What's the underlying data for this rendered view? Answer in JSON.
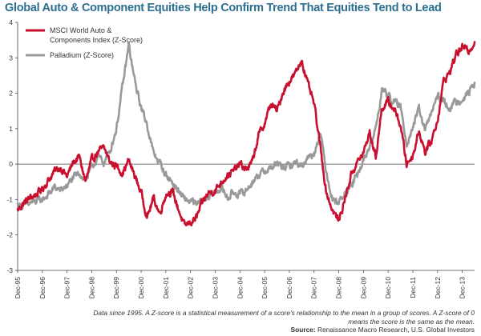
{
  "chart_data": {
    "type": "line",
    "title": "Global Auto & Component Equities Help Confirm Trend That Equities Tend to Lead",
    "xlabel": "",
    "ylabel": "",
    "ylim": [
      -3,
      4
    ],
    "yticks": [
      "-3",
      "-2",
      "-1",
      "0",
      "1",
      "2",
      "3",
      "4"
    ],
    "x_ticks": [
      "Dec-95",
      "Dec-96",
      "Dec-97",
      "Dec-98",
      "Dec-99",
      "Dec-00",
      "Dec-01",
      "Dec-02",
      "Dec-03",
      "Dec-04",
      "Dec-05",
      "Dec-06",
      "Dec-07",
      "Dec-08",
      "Dec-09",
      "Dec-10",
      "Dec-11",
      "Dec-12",
      "Dec-13"
    ],
    "grid": false,
    "legend_position": "top-left",
    "series": [
      {
        "name": "MSCI World Auto & Components Index (Z-Score)",
        "color": "#c8102e",
        "points": [
          [
            "1995-12",
            -1.3
          ],
          [
            "1996-03",
            -1.1
          ],
          [
            "1996-06",
            -0.95
          ],
          [
            "1996-09",
            -0.85
          ],
          [
            "1996-12",
            -0.7
          ],
          [
            "1997-03",
            -0.45
          ],
          [
            "1997-06",
            -0.2
          ],
          [
            "1997-09",
            -0.1
          ],
          [
            "1997-12",
            -0.35
          ],
          [
            "1998-03",
            0.05
          ],
          [
            "1998-06",
            0.2
          ],
          [
            "1998-09",
            -0.5
          ],
          [
            "1998-12",
            0.1
          ],
          [
            "1999-03",
            0.35
          ],
          [
            "1999-06",
            0.45
          ],
          [
            "1999-09",
            0.05
          ],
          [
            "1999-12",
            -0.05
          ],
          [
            "2000-03",
            -0.25
          ],
          [
            "2000-06",
            0.1
          ],
          [
            "2000-09",
            -0.35
          ],
          [
            "2000-12",
            -0.8
          ],
          [
            "2001-03",
            -1.5
          ],
          [
            "2001-06",
            -0.95
          ],
          [
            "2001-09",
            -1.4
          ],
          [
            "2001-12",
            -0.85
          ],
          [
            "2002-03",
            -0.75
          ],
          [
            "2002-06",
            -1.25
          ],
          [
            "2002-09",
            -1.75
          ],
          [
            "2002-12",
            -1.65
          ],
          [
            "2003-03",
            -1.5
          ],
          [
            "2003-06",
            -1.05
          ],
          [
            "2003-09",
            -0.8
          ],
          [
            "2003-12",
            -0.75
          ],
          [
            "2004-03",
            -0.5
          ],
          [
            "2004-06",
            -0.3
          ],
          [
            "2004-09",
            -0.2
          ],
          [
            "2004-12",
            0.0
          ],
          [
            "2005-03",
            -0.15
          ],
          [
            "2005-06",
            0.05
          ],
          [
            "2005-09",
            0.8
          ],
          [
            "2005-12",
            1.15
          ],
          [
            "2006-03",
            1.7
          ],
          [
            "2006-06",
            1.5
          ],
          [
            "2006-09",
            2.05
          ],
          [
            "2006-12",
            2.35
          ],
          [
            "2007-03",
            2.55
          ],
          [
            "2007-06",
            2.95
          ],
          [
            "2007-09",
            2.25
          ],
          [
            "2007-12",
            1.7
          ],
          [
            "2008-03",
            0.5
          ],
          [
            "2008-06",
            -0.8
          ],
          [
            "2008-09",
            -1.3
          ],
          [
            "2008-12",
            -1.6
          ],
          [
            "2009-03",
            -1.0
          ],
          [
            "2009-06",
            -0.3
          ],
          [
            "2009-09",
            0.05
          ],
          [
            "2009-12",
            0.3
          ],
          [
            "2010-03",
            0.9
          ],
          [
            "2010-06",
            0.2
          ],
          [
            "2010-09",
            1.6
          ],
          [
            "2010-12",
            1.75
          ],
          [
            "2011-03",
            1.55
          ],
          [
            "2011-06",
            1.1
          ],
          [
            "2011-09",
            0.0
          ],
          [
            "2011-12",
            0.25
          ],
          [
            "2012-03",
            0.95
          ],
          [
            "2012-06",
            0.35
          ],
          [
            "2012-09",
            0.65
          ],
          [
            "2012-12",
            1.25
          ],
          [
            "2013-03",
            2.35
          ],
          [
            "2013-06",
            2.6
          ],
          [
            "2013-09",
            3.1
          ],
          [
            "2013-12",
            3.3
          ],
          [
            "2014-03",
            3.2
          ],
          [
            "2014-06",
            3.45
          ]
        ]
      },
      {
        "name": "Palladium (Z-Score)",
        "color": "#999999",
        "points": [
          [
            "1995-12",
            -1.15
          ],
          [
            "1996-03",
            -1.2
          ],
          [
            "1996-06",
            -1.1
          ],
          [
            "1996-09",
            -1.05
          ],
          [
            "1996-12",
            -1.0
          ],
          [
            "1997-03",
            -0.85
          ],
          [
            "1997-06",
            -0.65
          ],
          [
            "1997-09",
            -0.75
          ],
          [
            "1997-12",
            -0.6
          ],
          [
            "1998-03",
            -0.4
          ],
          [
            "1998-06",
            -0.25
          ],
          [
            "1998-09",
            -0.45
          ],
          [
            "1998-12",
            -0.1
          ],
          [
            "1999-03",
            0.2
          ],
          [
            "1999-06",
            0.05
          ],
          [
            "1999-09",
            0.4
          ],
          [
            "1999-12",
            1.0
          ],
          [
            "2000-03",
            2.2
          ],
          [
            "2000-06",
            3.35
          ],
          [
            "2000-09",
            2.3
          ],
          [
            "2000-12",
            1.6
          ],
          [
            "2001-03",
            1.1
          ],
          [
            "2001-06",
            0.3
          ],
          [
            "2001-09",
            0.05
          ],
          [
            "2001-12",
            -0.3
          ],
          [
            "2002-03",
            -0.5
          ],
          [
            "2002-06",
            -0.75
          ],
          [
            "2002-09",
            -1.0
          ],
          [
            "2002-12",
            -1.05
          ],
          [
            "2003-03",
            -1.15
          ],
          [
            "2003-06",
            -1.05
          ],
          [
            "2003-09",
            -0.9
          ],
          [
            "2003-12",
            -0.8
          ],
          [
            "2004-03",
            -0.65
          ],
          [
            "2004-06",
            -0.95
          ],
          [
            "2004-09",
            -0.8
          ],
          [
            "2004-12",
            -0.85
          ],
          [
            "2005-03",
            -0.75
          ],
          [
            "2005-06",
            -0.5
          ],
          [
            "2005-09",
            -0.3
          ],
          [
            "2005-12",
            -0.2
          ],
          [
            "2006-03",
            -0.1
          ],
          [
            "2006-06",
            0.0
          ],
          [
            "2006-09",
            -0.1
          ],
          [
            "2006-12",
            -0.05
          ],
          [
            "2007-03",
            0.05
          ],
          [
            "2007-06",
            -0.05
          ],
          [
            "2007-09",
            0.2
          ],
          [
            "2007-12",
            0.3
          ],
          [
            "2008-03",
            0.9
          ],
          [
            "2008-06",
            -0.2
          ],
          [
            "2008-09",
            -1.0
          ],
          [
            "2008-12",
            -1.05
          ],
          [
            "2009-03",
            -0.85
          ],
          [
            "2009-06",
            -0.6
          ],
          [
            "2009-09",
            -0.35
          ],
          [
            "2009-12",
            0.1
          ],
          [
            "2010-03",
            0.5
          ],
          [
            "2010-06",
            1.0
          ],
          [
            "2010-09",
            2.1
          ],
          [
            "2010-12",
            1.95
          ],
          [
            "2011-03",
            1.75
          ],
          [
            "2011-06",
            1.6
          ],
          [
            "2011-09",
            0.6
          ],
          [
            "2011-12",
            1.05
          ],
          [
            "2012-03",
            1.55
          ],
          [
            "2012-06",
            0.95
          ],
          [
            "2012-09",
            1.45
          ],
          [
            "2012-12",
            1.9
          ],
          [
            "2013-03",
            1.75
          ],
          [
            "2013-06",
            1.6
          ],
          [
            "2013-09",
            1.75
          ],
          [
            "2013-12",
            1.85
          ],
          [
            "2014-03",
            2.0
          ],
          [
            "2014-06",
            2.3
          ]
        ]
      }
    ]
  },
  "footnote": {
    "text": "Data since 1995. A Z-score is a statistical measurement of a score's relationship to the mean in a group of scores. A Z-score of 0 means the score is the same as the mean.",
    "source_label": "Source:",
    "source_text": "Renaissance Macro Research, U.S. Global Investors"
  }
}
